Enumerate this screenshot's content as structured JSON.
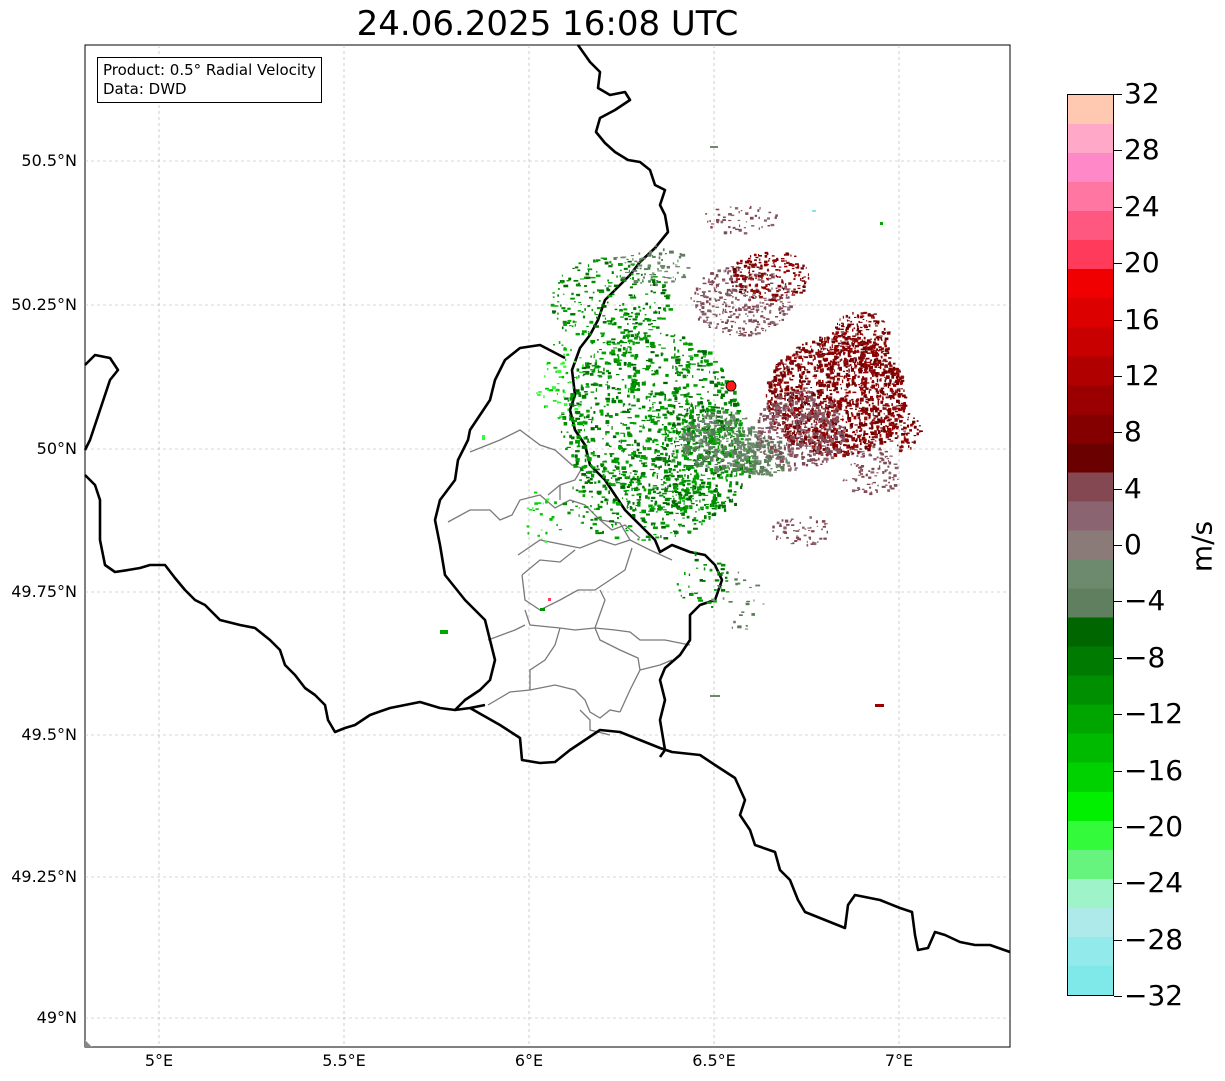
{
  "title": "24.06.2025 16:08 UTC",
  "info": {
    "line1": "Product: 0.5° Radial Velocity",
    "line2": "Data: DWD"
  },
  "map": {
    "lon_range": [
      4.8,
      7.3
    ],
    "lat_range": [
      48.95,
      50.7
    ],
    "lat_ticks": [
      "50.5°N",
      "50.25°N",
      "50°N",
      "49.75°N",
      "49.5°N",
      "49.25°N",
      "49°N"
    ],
    "lon_ticks": [
      "5°E",
      "5.5°E",
      "6°E",
      "6.5°E",
      "7°E"
    ],
    "radar_site": {
      "lon": 6.55,
      "lat": 50.11,
      "color": "#ff0000"
    }
  },
  "colorbar": {
    "unit": "m/s",
    "vmin": -32,
    "vmax": 32,
    "tick_labels": [
      "32",
      "28",
      "24",
      "20",
      "16",
      "12",
      "8",
      "4",
      "0",
      "−4",
      "−8",
      "−12",
      "−16",
      "−20",
      "−24",
      "−28",
      "−32"
    ],
    "colors_bottom_to_top": [
      "#7fe8e8",
      "#93eaeb",
      "#afeaea",
      "#9ff3c8",
      "#66f47f",
      "#33fa3a",
      "#00f000",
      "#00d200",
      "#00ba00",
      "#00a500",
      "#008f00",
      "#007a00",
      "#006600",
      "#5f7f5f",
      "#6e8a6e",
      "#8a7a78",
      "#8a6471",
      "#844852",
      "#6a0000",
      "#840000",
      "#9a0000",
      "#b00000",
      "#c80000",
      "#dc0000",
      "#f00000",
      "#ff3a5a",
      "#ff5880",
      "#ff76a2",
      "#ff88c8",
      "#ffa8c8",
      "#ffc8b0"
    ]
  }
}
